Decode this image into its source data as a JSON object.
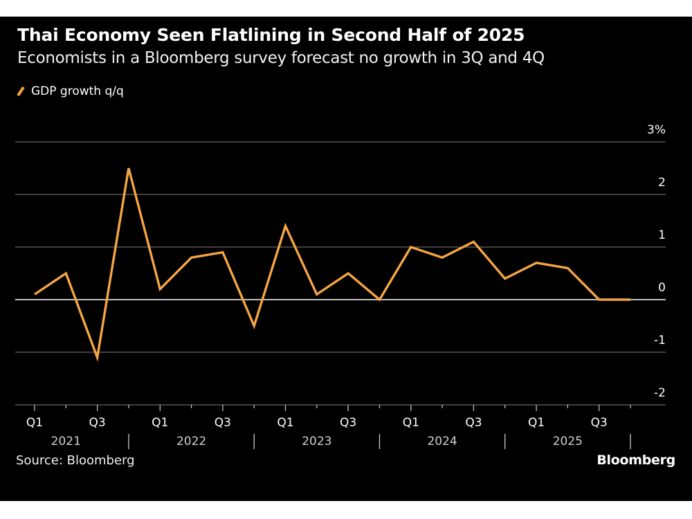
{
  "header": {
    "title": "Thai Economy Seen Flatlining in Second Half of 2025",
    "subtitle": "Economists in a Bloomberg survey forecast no growth in 3Q and 4Q"
  },
  "legend": {
    "label": "GDP growth q/q",
    "color": "#F5A643"
  },
  "footer": {
    "source": "Source: Bloomberg",
    "brand": "Bloomberg"
  },
  "colors": {
    "background": "#000000",
    "line": "#F5A643",
    "grid": "#666666",
    "zero_line": "#FFFFFF",
    "text": "#FFFFFF",
    "year_text": "#D0D0D0"
  },
  "chart_data": {
    "type": "line",
    "title": "Thai Economy Seen Flatlining in Second Half of 2025",
    "subtitle": "Economists in a Bloomberg survey forecast no growth in 3Q and 4Q",
    "xlabel": "",
    "ylabel": "",
    "x": [
      "Q1 2021",
      "Q2 2021",
      "Q3 2021",
      "Q4 2021",
      "Q1 2022",
      "Q2 2022",
      "Q3 2022",
      "Q4 2022",
      "Q1 2023",
      "Q2 2023",
      "Q3 2023",
      "Q4 2023",
      "Q1 2024",
      "Q2 2024",
      "Q3 2024",
      "Q4 2024",
      "Q1 2025",
      "Q2 2025",
      "Q3 2025",
      "Q4 2025"
    ],
    "series": [
      {
        "name": "GDP growth q/q",
        "values": [
          0.1,
          0.5,
          -1.1,
          2.5,
          0.2,
          0.8,
          0.9,
          -0.5,
          1.4,
          0.1,
          0.5,
          0.0,
          1.0,
          0.8,
          1.1,
          0.4,
          0.7,
          0.6,
          0.0,
          0.0
        ]
      }
    ],
    "ylim": [
      -2,
      3
    ],
    "yticks": [
      3,
      2,
      1,
      0,
      -1,
      -2
    ],
    "ytick_labels": [
      "3%",
      "2",
      "1",
      "0",
      "-1",
      "-2"
    ],
    "y_axis_side": "right",
    "xtick_labels": [
      "Q1",
      "Q3",
      "Q1",
      "Q3",
      "Q1",
      "Q3",
      "Q1",
      "Q3",
      "Q1",
      "Q3"
    ],
    "xtick_quarter_index": [
      0,
      2,
      4,
      6,
      8,
      10,
      12,
      14,
      16,
      18
    ],
    "year_labels": [
      "2021",
      "2022",
      "2023",
      "2024",
      "2025"
    ],
    "grid": true,
    "legend_position": "top-left",
    "source": "Source: Bloomberg"
  }
}
